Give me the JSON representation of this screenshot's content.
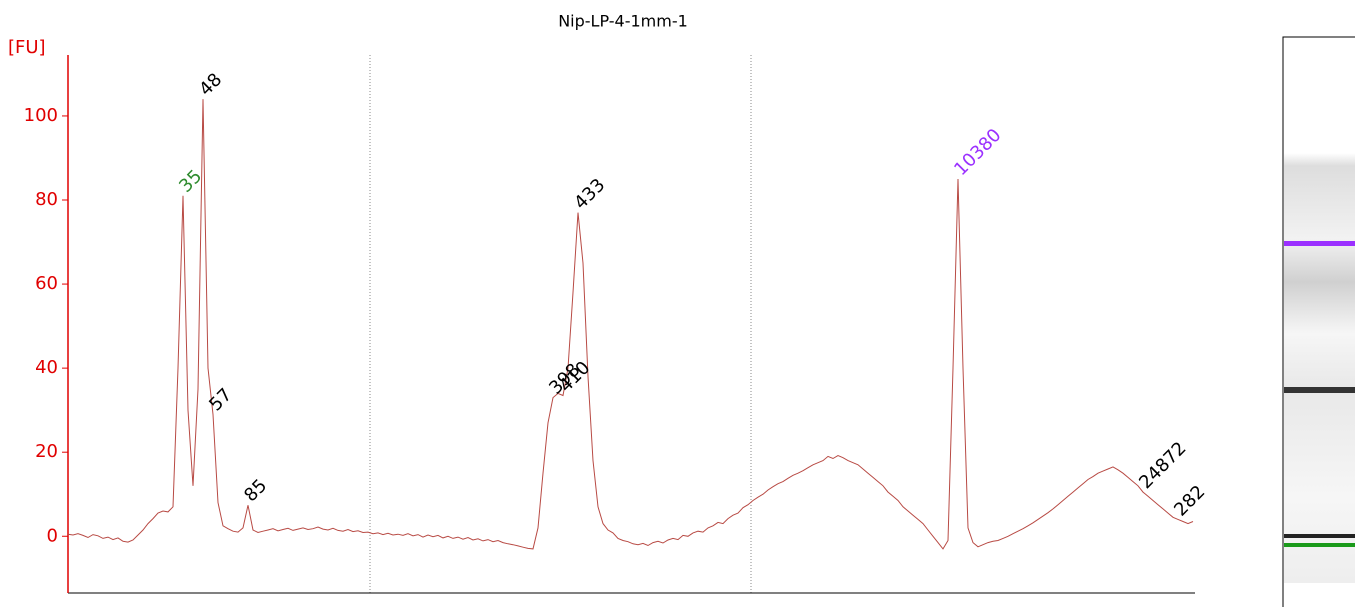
{
  "chart_data": {
    "type": "line",
    "title": "Nip-LP-4-1mm-1",
    "y_label": "[FU]",
    "color": "#b84a44",
    "axis_color": "#e00000",
    "ylim": [
      -13.5,
      114.5
    ],
    "yticks": [
      0,
      20,
      40,
      60,
      80,
      100
    ],
    "values": [
      0.5,
      0.3,
      0.6,
      0.2,
      -0.3,
      0.4,
      0.1,
      -0.5,
      -0.2,
      -0.8,
      -0.4,
      -1.2,
      -1.4,
      -0.9,
      0.3,
      1.5,
      3.0,
      4.2,
      5.5,
      6.0,
      5.8,
      7.0,
      40,
      81,
      30,
      12,
      35,
      104,
      40,
      29,
      8,
      2.5,
      1.8,
      1.2,
      1.0,
      2.0,
      7.4,
      1.5,
      0.9,
      1.2,
      1.5,
      1.8,
      1.3,
      1.6,
      1.9,
      1.4,
      1.7,
      2.0,
      1.6,
      1.8,
      2.2,
      1.7,
      1.5,
      1.9,
      1.4,
      1.2,
      1.6,
      1.1,
      1.3,
      0.9,
      1.0,
      0.6,
      0.8,
      0.4,
      0.7,
      0.3,
      0.5,
      0.2,
      0.6,
      0.1,
      0.4,
      -0.2,
      0.3,
      -0.1,
      0.2,
      -0.4,
      0.0,
      -0.5,
      -0.2,
      -0.7,
      -0.3,
      -0.9,
      -0.6,
      -1.1,
      -0.8,
      -1.3,
      -1.0,
      -1.5,
      -1.8,
      -2.0,
      -2.3,
      -2.6,
      -2.9,
      -3.0,
      2,
      15,
      27,
      33,
      34,
      33.5,
      40,
      58,
      77,
      65,
      38,
      18,
      7,
      3,
      1.5,
      0.8,
      -0.5,
      -1.0,
      -1.3,
      -1.8,
      -2.0,
      -1.7,
      -2.2,
      -1.5,
      -1.2,
      -1.6,
      -0.9,
      -0.5,
      -0.8,
      0.2,
      0.0,
      0.8,
      1.2,
      1.0,
      2.0,
      2.5,
      3.3,
      3.0,
      4.2,
      5.0,
      5.5,
      6.8,
      7.5,
      8.5,
      9.3,
      10.0,
      11.0,
      11.8,
      12.5,
      13.0,
      13.8,
      14.5,
      15.0,
      15.6,
      16.3,
      17.0,
      17.5,
      18.0,
      19.0,
      18.5,
      19.2,
      18.7,
      18.0,
      17.5,
      17.0,
      16.0,
      15.0,
      14.0,
      13.0,
      12.0,
      10.5,
      9.5,
      8.5,
      7.0,
      6.0,
      5.0,
      4.0,
      3.0,
      1.5,
      0.0,
      -1.5,
      -3.0,
      -1.0,
      40,
      85,
      40,
      2,
      -1.5,
      -2.5,
      -2.0,
      -1.5,
      -1.2,
      -1.0,
      -0.5,
      0.0,
      0.6,
      1.2,
      1.8,
      2.5,
      3.2,
      4.0,
      4.8,
      5.6,
      6.5,
      7.5,
      8.5,
      9.5,
      10.5,
      11.5,
      12.5,
      13.5,
      14.2,
      15.0,
      15.5,
      16.0,
      16.5,
      15.8,
      15.0,
      14.0,
      13.0,
      12.0,
      10.5,
      9.5,
      8.5,
      7.5,
      6.5,
      5.5,
      4.5,
      4.0,
      3.5,
      3.0,
      3.5
    ],
    "annotations": [
      {
        "text": "35",
        "index": 23,
        "color": "#2e8b2e"
      },
      {
        "text": "48",
        "index": 27,
        "color": "#000000"
      },
      {
        "text": "57",
        "index": 29,
        "color": "#000000"
      },
      {
        "text": "85",
        "index": 36,
        "color": "#000000"
      },
      {
        "text": "398",
        "index": 97,
        "color": "#000000"
      },
      {
        "text": "410",
        "index": 99,
        "color": "#000000"
      },
      {
        "text": "433",
        "index": 102,
        "color": "#000000"
      },
      {
        "text": "10380",
        "index": 178,
        "color": "#9b30ff"
      },
      {
        "text": "24872",
        "index": 215,
        "color": "#000000"
      },
      {
        "text": "282",
        "index": 222,
        "color": "#000000"
      }
    ]
  }
}
